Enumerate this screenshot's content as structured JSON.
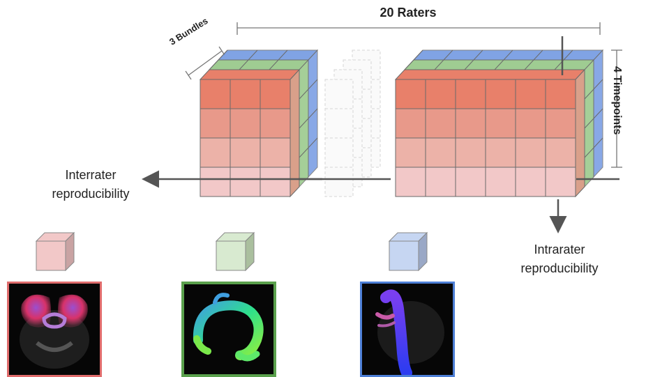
{
  "labels": {
    "raters": "20 Raters",
    "bundles": "3 Bundles",
    "timepoints": "4 Timepoints",
    "interrater_line1": "Interrater",
    "interrater_line2": "reproducibility",
    "intrarater_line1": "Intrarater",
    "intrarater_line2": "reproducibility"
  },
  "colors": {
    "bundle_red": "#e8806a",
    "bundle_green": "#8fc47f",
    "bundle_blue": "#6b93e0",
    "thumb_red_border": "#e06c6c",
    "thumb_green_border": "#5aa04c",
    "thumb_blue_border": "#4d7fd6"
  }
}
